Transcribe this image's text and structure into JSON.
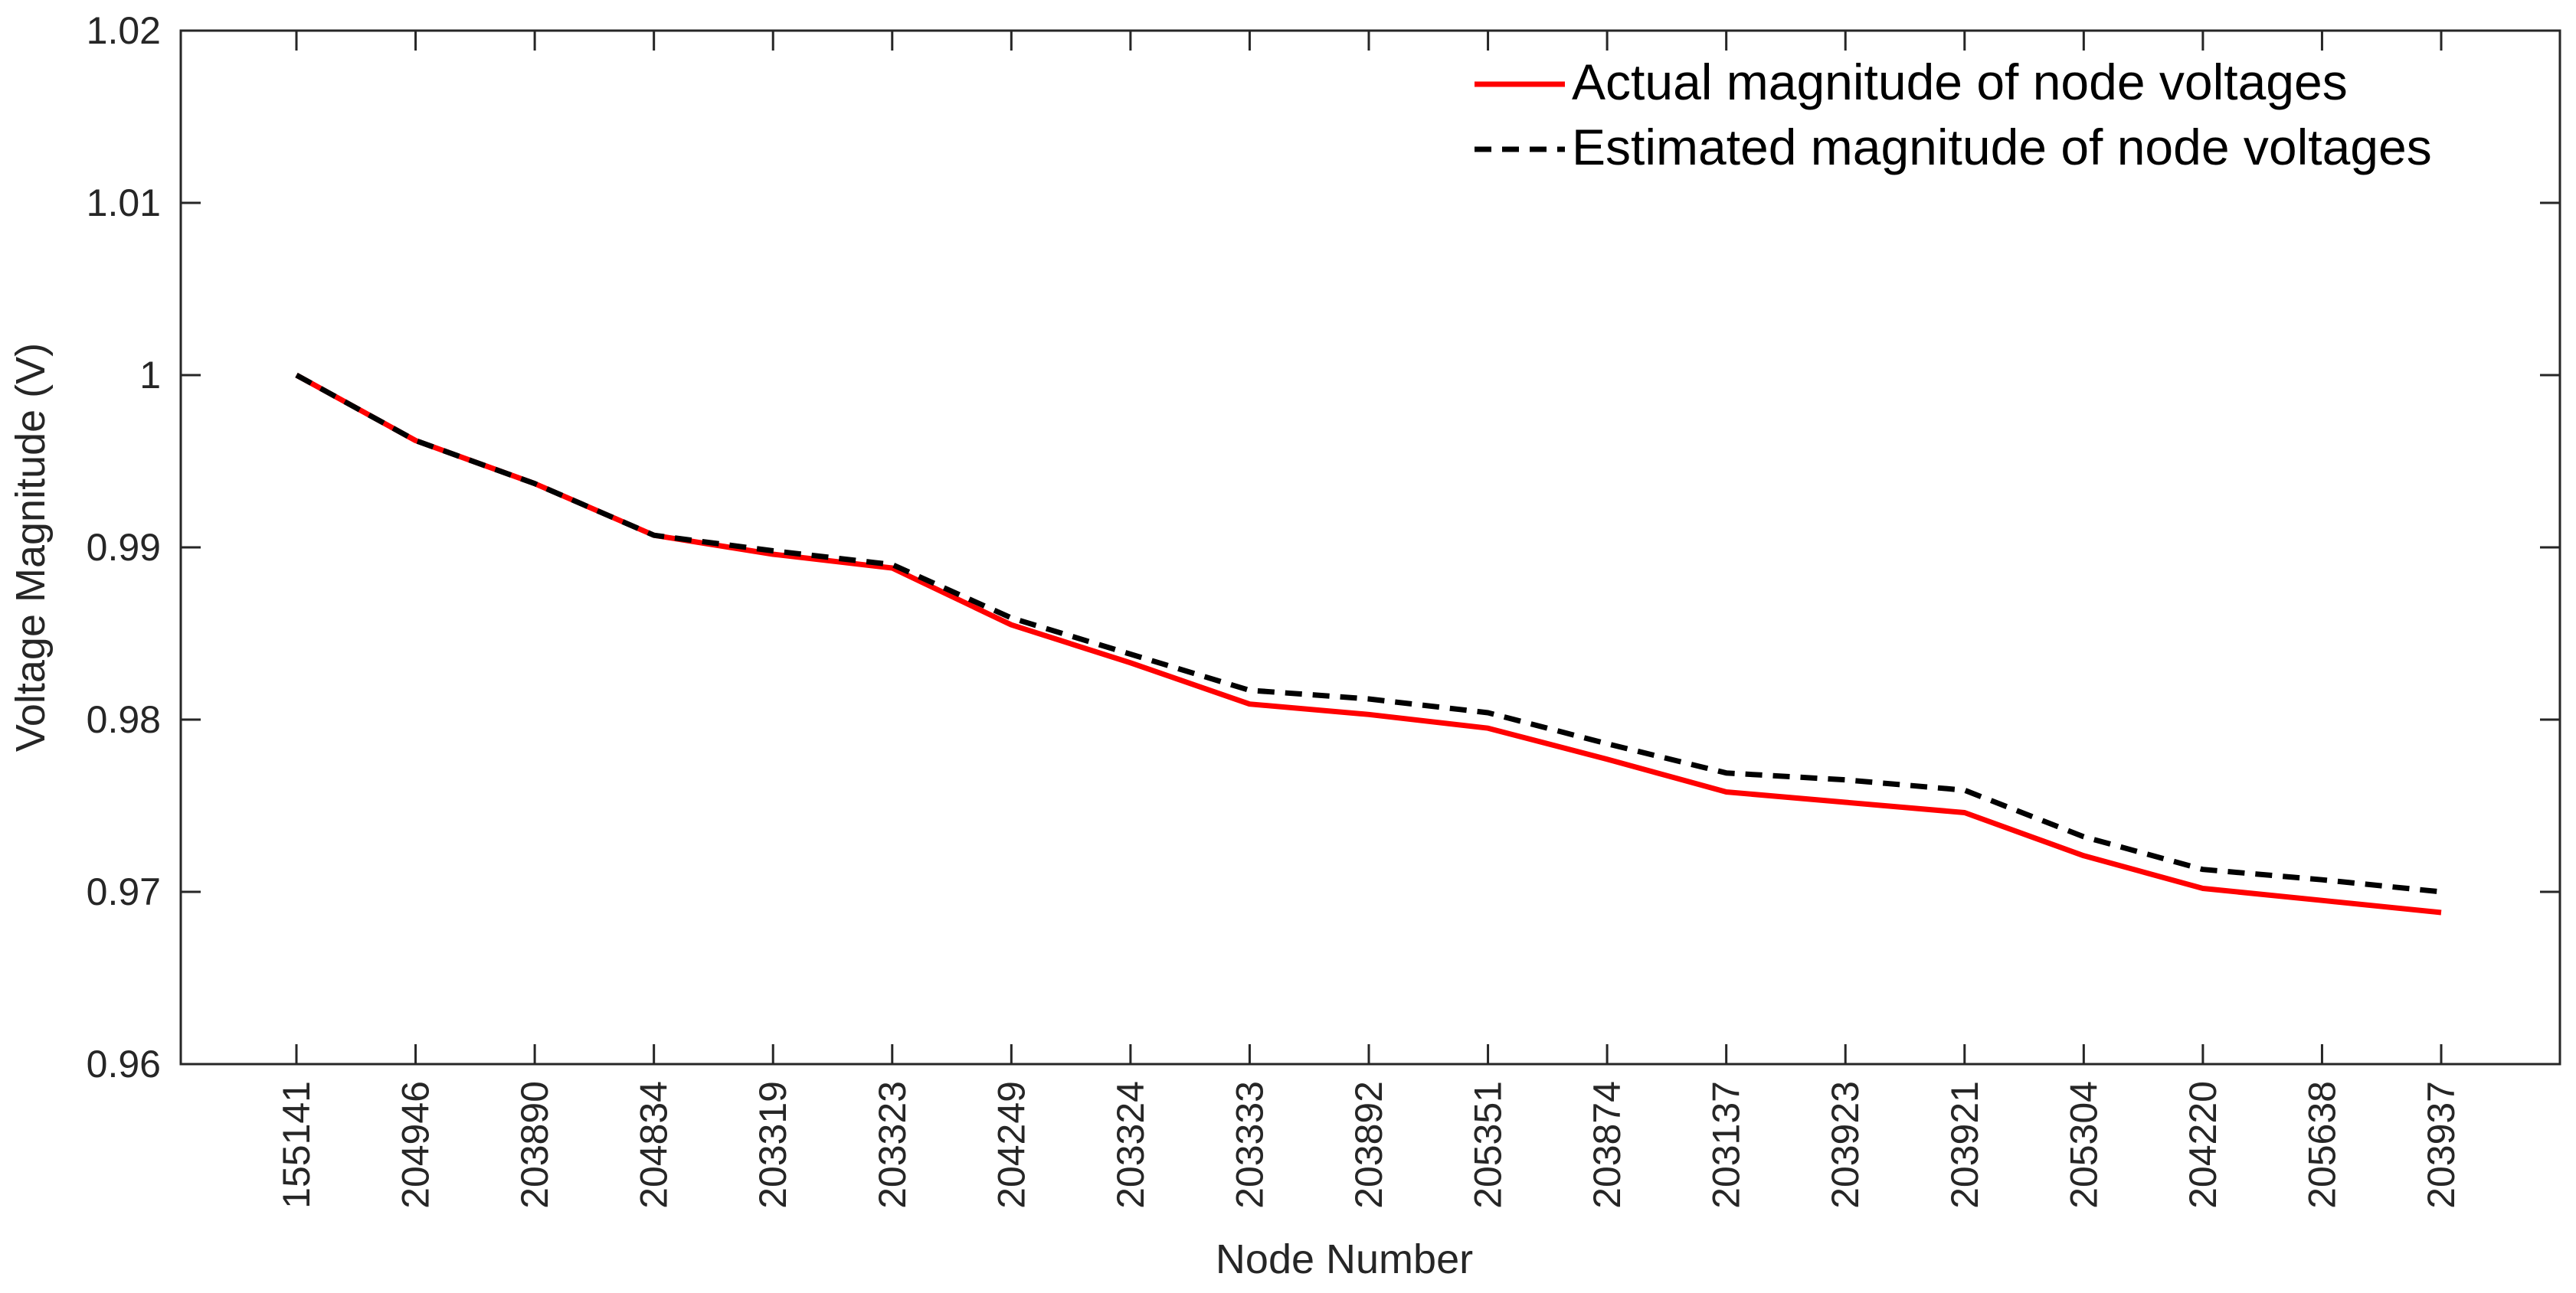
{
  "chart_data": {
    "type": "line",
    "title": "",
    "xlabel": "Node Number",
    "ylabel": "Voltage Magnitude (V)",
    "ylim": [
      0.96,
      1.02
    ],
    "yticks": [
      "0.96",
      "0.97",
      "0.98",
      "0.99",
      "1",
      "1.01",
      "1.02"
    ],
    "ytick_values": [
      0.96,
      0.97,
      0.98,
      0.99,
      1.0,
      1.01,
      1.02
    ],
    "categories": [
      "155141",
      "204946",
      "203890",
      "204834",
      "203319",
      "203323",
      "204249",
      "203324",
      "203333",
      "203892",
      "205351",
      "203874",
      "203137",
      "203923",
      "203921",
      "205304",
      "204220",
      "205638",
      "203937"
    ],
    "legend_position": "top-right",
    "grid": false,
    "series": [
      {
        "name": "Actual magnitude of node voltages",
        "style": "solid",
        "color": "#ff0000",
        "values": [
          1.0,
          0.9962,
          0.9937,
          0.9907,
          0.9896,
          0.9888,
          0.9855,
          0.9833,
          0.9809,
          0.9803,
          0.9795,
          0.9777,
          0.9758,
          0.9752,
          0.9746,
          0.9721,
          0.9702,
          0.9695,
          0.9688
        ]
      },
      {
        "name": "Estimated magnitude of node voltages",
        "style": "dashed",
        "color": "#000000",
        "values": [
          1.0,
          0.9962,
          0.9937,
          0.9907,
          0.9898,
          0.989,
          0.9859,
          0.9838,
          0.9817,
          0.9812,
          0.9804,
          0.9786,
          0.9769,
          0.9765,
          0.9759,
          0.9732,
          0.9713,
          0.9707,
          0.97
        ]
      }
    ]
  }
}
